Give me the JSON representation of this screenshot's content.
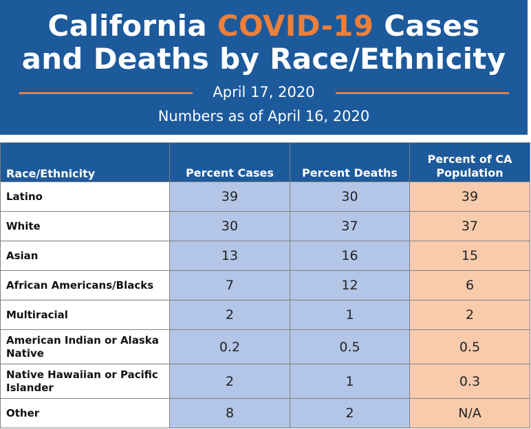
{
  "header": {
    "title_part1": "California ",
    "title_accent": "COVID-19",
    "title_part2": " Cases",
    "title_line2": "and Deaths by Race/Ethnicity",
    "date": "April 17, 2020",
    "as_of": "Numbers as of April 16, 2020"
  },
  "colors": {
    "banner": "#1d5a9c",
    "accent": "#ec7f3a",
    "cases_deaths_fill": "#b4c6e7",
    "population_fill": "#f8cbad"
  },
  "chart_data": {
    "type": "table",
    "columns": [
      "Race/Ethnicity",
      "Percent Cases",
      "Percent Deaths",
      "Percent of CA Population"
    ],
    "rows": [
      {
        "group": "Latino",
        "cases": "39",
        "deaths": "30",
        "population": "39"
      },
      {
        "group": "White",
        "cases": "30",
        "deaths": "37",
        "population": "37"
      },
      {
        "group": "Asian",
        "cases": "13",
        "deaths": "16",
        "population": "15"
      },
      {
        "group": "African Americans/Blacks",
        "cases": "7",
        "deaths": "12",
        "population": "6"
      },
      {
        "group": "Multiracial",
        "cases": "2",
        "deaths": "1",
        "population": "2"
      },
      {
        "group": "American Indian or Alaska Native",
        "cases": "0.2",
        "deaths": "0.5",
        "population": "0.5"
      },
      {
        "group": "Native Hawaiian or Pacific Islander",
        "cases": "2",
        "deaths": "1",
        "population": "0.3"
      },
      {
        "group": "Other",
        "cases": "8",
        "deaths": "2",
        "population": "N/A"
      }
    ]
  }
}
